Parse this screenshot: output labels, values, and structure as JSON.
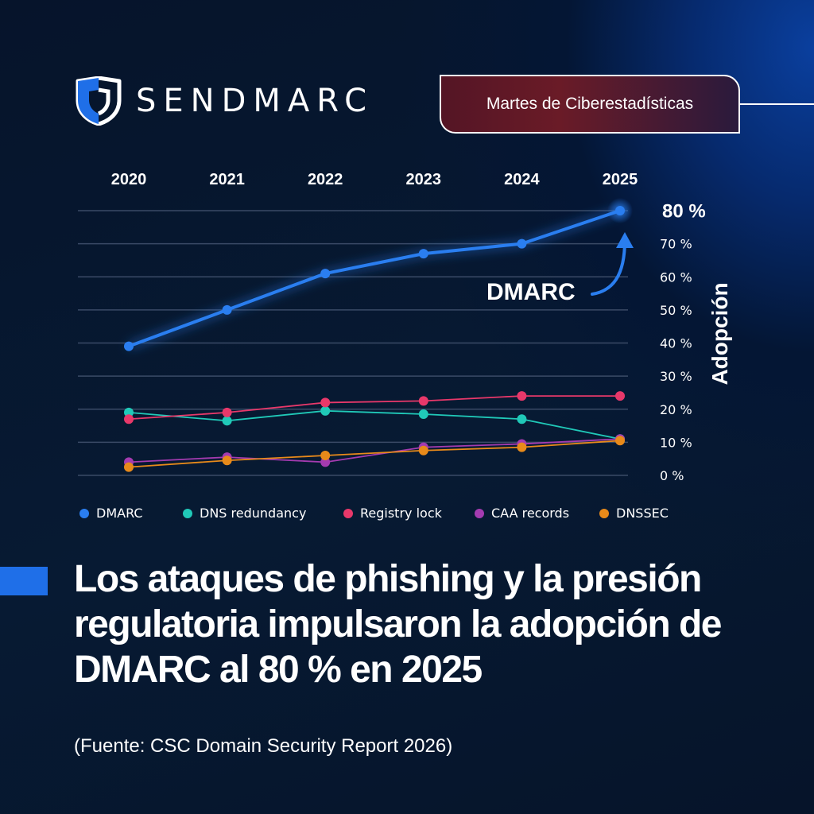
{
  "brand": {
    "name": "SENDMARC",
    "logo_icon": "shield-icon",
    "accent_color": "#1f6fe8"
  },
  "badge": {
    "label": "Martes de Ciberestadísticas"
  },
  "chart_data": {
    "type": "line",
    "x": [
      "2020",
      "2021",
      "2022",
      "2023",
      "2024",
      "2025"
    ],
    "ylabel": "Adopción",
    "ylim": [
      0,
      80
    ],
    "yticks": [
      "0 %",
      "10 %",
      "20 %",
      "30 %",
      "40 %",
      "50 %",
      "60 %",
      "70 %",
      "80 %"
    ],
    "grid": true,
    "legend_position": "bottom",
    "series": [
      {
        "name": "DMARC",
        "color": "#2a7ef0",
        "values": [
          39,
          50,
          61,
          67,
          70,
          80
        ]
      },
      {
        "name": "DNS redundancy",
        "color": "#20c9b8",
        "values": [
          19,
          16.5,
          19.5,
          18.5,
          17,
          11
        ]
      },
      {
        "name": "Registry lock",
        "color": "#e8386a",
        "values": [
          17,
          19,
          22,
          22.5,
          24,
          24
        ]
      },
      {
        "name": "CAA records",
        "color": "#a43bb0",
        "values": [
          4,
          5.5,
          4,
          8.5,
          9.5,
          11
        ]
      },
      {
        "name": "DNSSEC",
        "color": "#e88a1a",
        "values": [
          2.5,
          4.5,
          6,
          7.5,
          8.5,
          10.5
        ]
      }
    ],
    "annotations": [
      {
        "text": "DMARC",
        "series": "DMARC",
        "points_to": "2025"
      }
    ]
  },
  "headline": "Los ataques de phishing y la presión regulatoria impulsaron la adopción de DMARC al 80 % en 2025",
  "source": "(Fuente: CSC Domain Security Report 2026)"
}
